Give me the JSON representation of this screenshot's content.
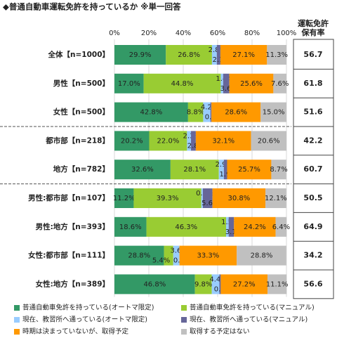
{
  "chart_data": {
    "type": "stacked_bar_horizontal",
    "title": "◆普通自動車運転免許を持っているか ※単一回答",
    "categories": [
      "全体【n=1000】",
      "男性【n=500】",
      "女性【n=500】",
      "都市部【n=218】",
      "地方【n=782】",
      "男性:都市部【n=107】",
      "男性:地方【n=393】",
      "女性:都市部【n=111】",
      "女性:地方【n=389】"
    ],
    "xlim": [
      0,
      100
    ],
    "xticks": [
      {
        "value": 0,
        "label": "0%"
      },
      {
        "value": 20,
        "label": "20%"
      },
      {
        "value": 40,
        "label": "40%"
      },
      {
        "value": 60,
        "label": "60%"
      },
      {
        "value": 80,
        "label": "80%"
      },
      {
        "value": 100,
        "label": "100%"
      }
    ],
    "grid": true,
    "series": [
      {
        "name": "普通自動車免許を持っている(オートマ限定)",
        "color": "#339966",
        "values": [
          29.9,
          17.0,
          42.8,
          20.2,
          32.6,
          11.2,
          18.6,
          28.8,
          46.8
        ],
        "value_labels": [
          "29.9%",
          "17.0%",
          "42.8%",
          "20.2%",
          "32.6%",
          "11.2%",
          "18.6%",
          "28.8%",
          "46.8%"
        ]
      },
      {
        "name": "普通自動車免許を持っている(マニュアル)",
        "color": "#99cc33",
        "values": [
          26.8,
          44.8,
          8.8,
          22.0,
          28.1,
          39.3,
          46.3,
          5.4,
          9.8
        ],
        "value_labels": [
          "26.8%",
          "44.8%",
          "8.8%",
          "22.0%",
          "28.1%",
          "39.3%",
          "46.3%",
          "5.4%",
          "9.8%"
        ]
      },
      {
        "name": "現在、教習所へ通っている(オートマ限定)",
        "color": "#99ccff",
        "values": [
          2.8,
          1.4,
          4.2,
          2.3,
          2.9,
          0.9,
          1.5,
          3.6,
          4.4
        ],
        "value_labels": [
          "2.8%",
          "1.4%",
          "4.2%",
          "2.3%",
          "2.9%",
          "0.9%",
          "1.5%",
          "3.6%",
          "4.4%"
        ]
      },
      {
        "name": "現在、教習所へ通っている(マニュアル)",
        "color": "#666699",
        "values": [
          2.1,
          3.6,
          0.6,
          2.8,
          1.9,
          5.6,
          3.1,
          0.0,
          0.8
        ],
        "value_labels": [
          "2.1%",
          "3.6%",
          "0.6%",
          "2.8%",
          "1.9%",
          "5.6%",
          "3.1%",
          "0.0%",
          "0.8%"
        ]
      },
      {
        "name": "時期は決まっていないが、取得予定",
        "color": "#ff9900",
        "values": [
          27.1,
          25.6,
          28.6,
          32.1,
          25.7,
          30.8,
          24.2,
          33.3,
          27.2
        ],
        "value_labels": [
          "27.1%",
          "25.6%",
          "28.6%",
          "32.1%",
          "25.7%",
          "30.8%",
          "24.2%",
          "33.3%",
          "27.2%"
        ]
      },
      {
        "name": "取得する予定はない",
        "color": "#c0c0c0",
        "values": [
          11.3,
          7.6,
          15.0,
          20.6,
          8.7,
          12.1,
          6.4,
          28.8,
          11.1
        ],
        "value_labels": [
          "11.3%",
          "7.6%",
          "15.0%",
          "20.6%",
          "8.7%",
          "12.1%",
          "6.4%",
          "28.8%",
          "11.1%"
        ]
      }
    ],
    "side_column": {
      "title_lines": [
        "運転免許",
        "保有率"
      ],
      "values": [
        56.7,
        61.8,
        51.6,
        42.2,
        60.7,
        50.5,
        64.9,
        34.2,
        56.6
      ]
    }
  }
}
